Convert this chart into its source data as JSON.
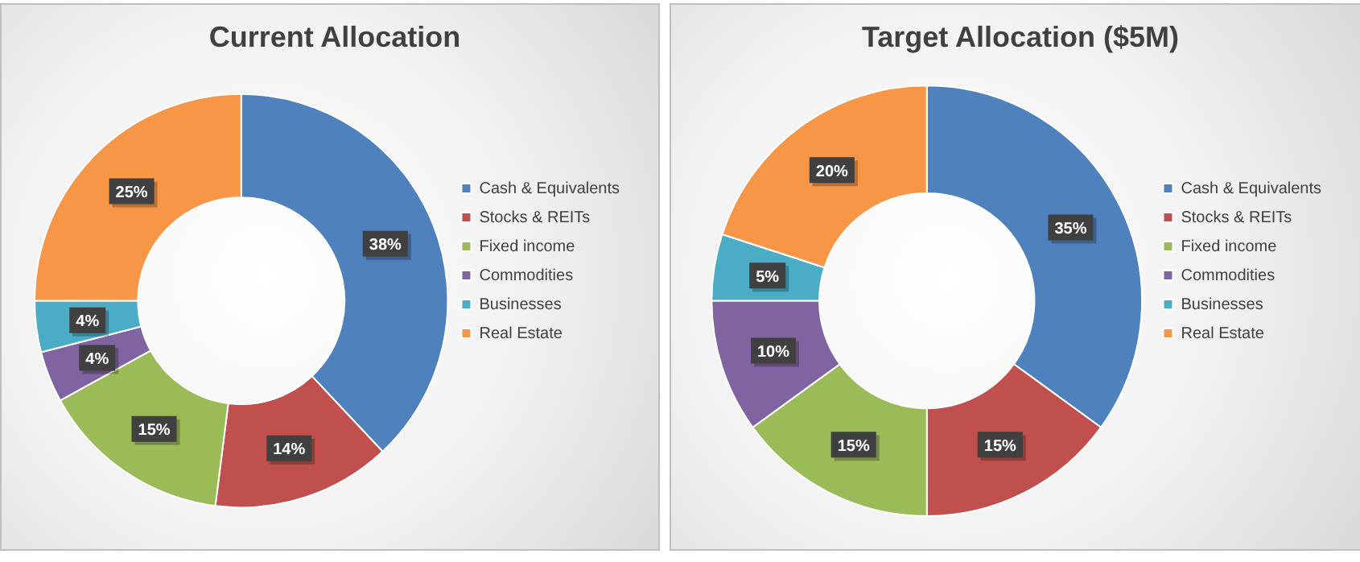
{
  "chart_data": [
    {
      "type": "donut",
      "title": "Current Allocation",
      "categories": [
        "Cash & Equivalents",
        "Stocks & REITs",
        "Fixed income",
        "Commodities",
        "Businesses",
        "Real Estate"
      ],
      "values": [
        38,
        14,
        15,
        4,
        4,
        25
      ],
      "value_labels": [
        "38%",
        "14%",
        "15%",
        "4%",
        "4%",
        "25%"
      ],
      "colors": [
        "#4f81bd",
        "#c0504d",
        "#9bbb59",
        "#8064a2",
        "#4bacc6",
        "#f79646"
      ],
      "legend": "right"
    },
    {
      "type": "donut",
      "title": "Target Allocation ($5M)",
      "categories": [
        "Cash & Equivalents",
        "Stocks & REITs",
        "Fixed income",
        "Commodities",
        "Businesses",
        "Real Estate"
      ],
      "values": [
        35,
        15,
        15,
        10,
        5,
        20
      ],
      "value_labels": [
        "35%",
        "15%",
        "15%",
        "10%",
        "5%",
        "20%"
      ],
      "colors": [
        "#4f81bd",
        "#c0504d",
        "#9bbb59",
        "#8064a2",
        "#4bacc6",
        "#f79646"
      ],
      "legend": "right"
    }
  ]
}
